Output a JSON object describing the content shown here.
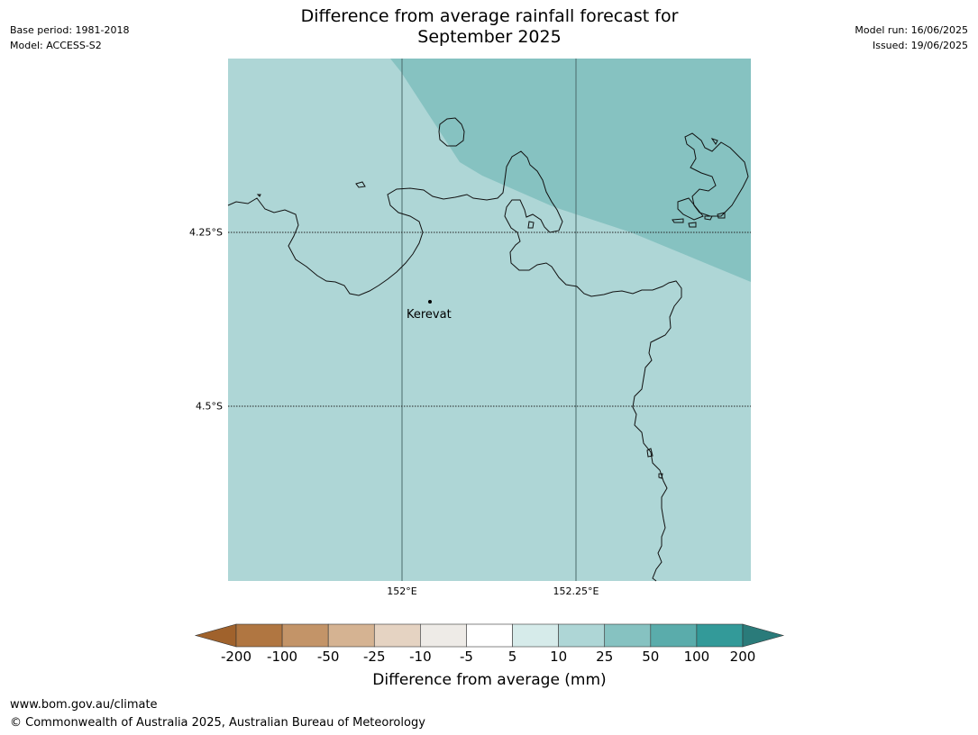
{
  "header": {
    "base_period": "Base period: 1981-2018",
    "model": "Model: ACCESS-S2",
    "model_run": "Model run: 16/06/2025",
    "issued": "Issued: 19/06/2025",
    "title_line1": "Difference from average rainfall forecast for",
    "title_line2": "September 2025"
  },
  "map": {
    "lat_labels": [
      "4.25°S",
      "4.5°S"
    ],
    "lon_labels": [
      "152°E",
      "152.25°E"
    ],
    "place": "Kerevat",
    "region_colors": {
      "light": "#aed6d6",
      "dark": "#86c2c1"
    }
  },
  "legend": {
    "ticks": [
      "-200",
      "-100",
      "-50",
      "-25",
      "-10",
      "-5",
      "5",
      "10",
      "25",
      "50",
      "100",
      "200"
    ],
    "colors": [
      "#a0622c",
      "#b07641",
      "#c39468",
      "#d5b392",
      "#e5d3c2",
      "#eeebe7",
      "#ffffff",
      "#d6ebea",
      "#aed6d6",
      "#86c2c1",
      "#5aacab",
      "#339a99",
      "#2a7b7a"
    ],
    "label": "Difference from average (mm)"
  },
  "footer": {
    "url": "www.bom.gov.au/climate",
    "copyright": "© Commonwealth of Australia 2025, Australian Bureau of Meteorology"
  }
}
